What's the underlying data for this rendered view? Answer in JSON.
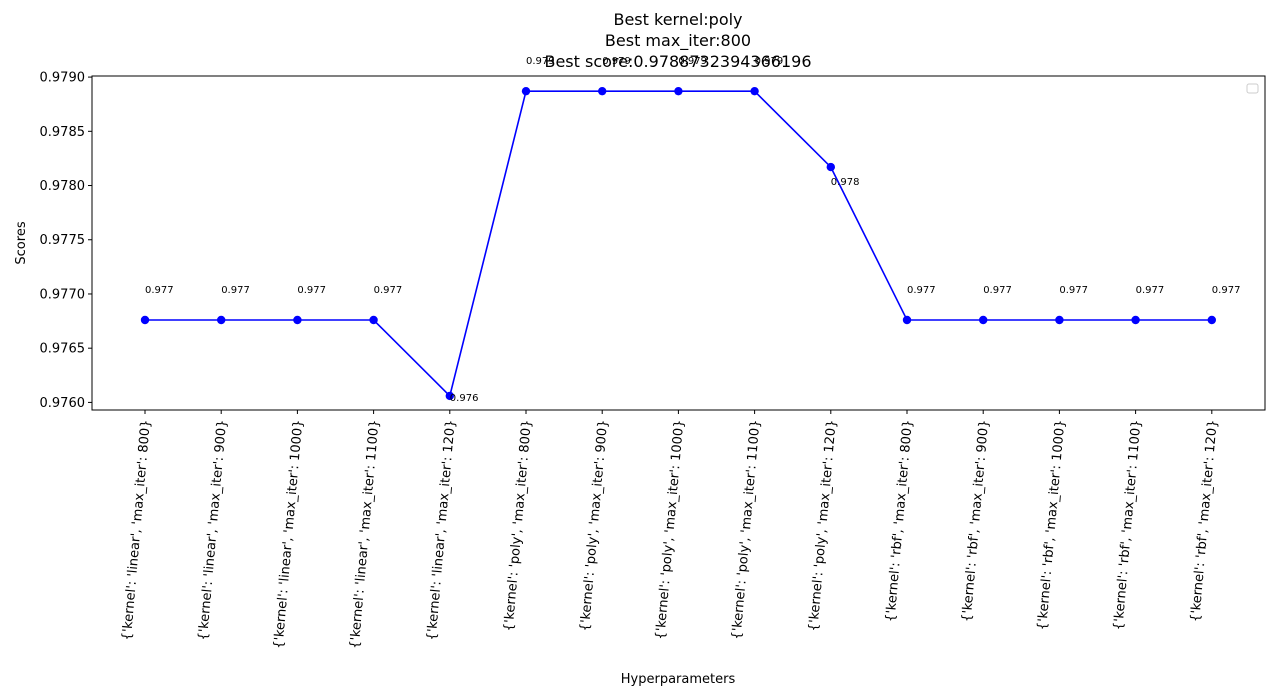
{
  "chart_data": {
    "type": "line",
    "title": [
      "Best kernel:poly",
      "Best max_iter:800",
      "Best score:0.9788732394366196"
    ],
    "xlabel": "Hyperparameters",
    "ylabel": "Scores",
    "categories": [
      "{'kernel': 'linear', 'max_iter': 800}",
      "{'kernel': 'linear', 'max_iter': 900}",
      "{'kernel': 'linear', 'max_iter': 1000}",
      "{'kernel': 'linear', 'max_iter': 1100}",
      "{'kernel': 'linear', 'max_iter': 120}",
      "{'kernel': 'poly', 'max_iter': 800}",
      "{'kernel': 'poly', 'max_iter': 900}",
      "{'kernel': 'poly', 'max_iter': 1000}",
      "{'kernel': 'poly', 'max_iter': 1100}",
      "{'kernel': 'poly', 'max_iter': 120}",
      "{'kernel': 'rbf', 'max_iter': 800}",
      "{'kernel': 'rbf', 'max_iter': 900}",
      "{'kernel': 'rbf', 'max_iter': 1000}",
      "{'kernel': 'rbf', 'max_iter': 1100}",
      "{'kernel': 'rbf', 'max_iter': 120}"
    ],
    "values": [
      0.97676,
      0.97676,
      0.97676,
      0.97676,
      0.97606,
      0.97887,
      0.97887,
      0.97887,
      0.97887,
      0.97817,
      0.97676,
      0.97676,
      0.97676,
      0.97676,
      0.97676
    ],
    "data_labels": [
      "0.977",
      "0.977",
      "0.977",
      "0.977",
      "0.976",
      "0.979",
      "0.979",
      "0.979",
      "0.979",
      "0.978",
      "0.977",
      "0.977",
      "0.977",
      "0.977",
      "0.977"
    ],
    "ylim": [
      0.97593,
      0.97901
    ],
    "yticks": [
      0.976,
      0.9765,
      0.977,
      0.9775,
      0.978,
      0.9785,
      0.979
    ],
    "ytick_labels": [
      "0.9760",
      "0.9765",
      "0.9770",
      "0.9775",
      "0.9780",
      "0.9785",
      "0.9790"
    ],
    "line_color": "#0000ff",
    "legend": "top-right",
    "grid": false
  }
}
